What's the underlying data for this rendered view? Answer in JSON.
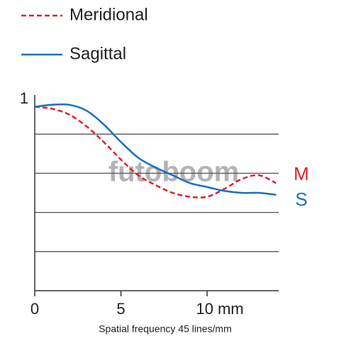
{
  "chart_data": {
    "type": "line",
    "x": [
      0,
      1,
      2,
      3,
      4,
      5,
      6,
      7,
      8,
      9,
      10,
      11,
      12,
      13,
      14
    ],
    "series": [
      {
        "name": "Meridional",
        "short_name": "M",
        "color": "#e0202a",
        "dashed": true,
        "values": [
          0.94,
          0.93,
          0.9,
          0.84,
          0.76,
          0.67,
          0.59,
          0.54,
          0.5,
          0.48,
          0.48,
          0.52,
          0.57,
          0.59,
          0.55
        ]
      },
      {
        "name": "Sagittal",
        "short_name": "S",
        "color": "#1a6fc0",
        "dashed": false,
        "values": [
          0.94,
          0.95,
          0.95,
          0.92,
          0.85,
          0.76,
          0.68,
          0.63,
          0.59,
          0.55,
          0.53,
          0.51,
          0.5,
          0.5,
          0.49
        ]
      }
    ],
    "xlim": [
      0,
      14.15
    ],
    "ylim": [
      0,
      1
    ],
    "xticks": [
      0,
      5,
      {
        "value": 10,
        "label": "10 mm"
      }
    ],
    "yticks": [
      1
    ],
    "ygrid": [
      0.2,
      0.4,
      0.6,
      0.8
    ],
    "xlabel": "Spatial frequency 45 lines/mm",
    "watermark": "futoboom"
  }
}
